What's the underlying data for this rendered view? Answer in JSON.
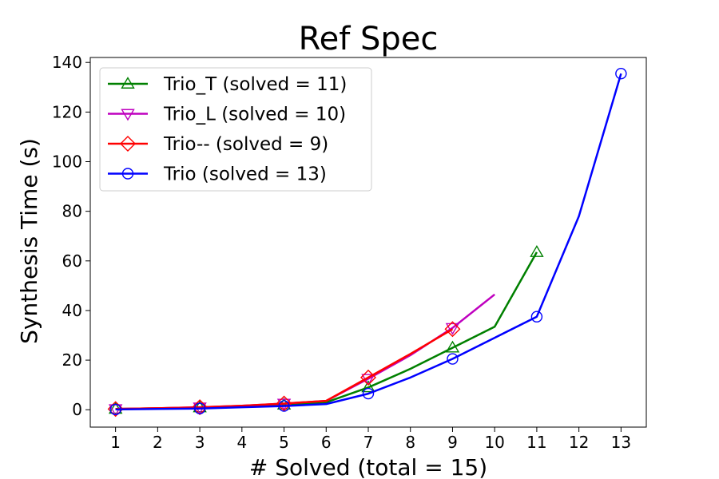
{
  "chart_data": {
    "type": "line",
    "title": "Ref Spec",
    "xlabel": "# Solved (total = 15)",
    "ylabel": "Synthesis Time (s)",
    "xlim": [
      0.4,
      13.6
    ],
    "ylim": [
      -7,
      142
    ],
    "xticks": [
      1,
      2,
      3,
      4,
      5,
      6,
      7,
      8,
      9,
      10,
      11,
      12,
      13
    ],
    "yticks": [
      0,
      20,
      40,
      60,
      80,
      100,
      120,
      140
    ],
    "grid": false,
    "legend_position": "top-left",
    "series": [
      {
        "name": "Trio_T (solved = 11)",
        "color": "#008000",
        "marker": "triangle-up",
        "x": [
          1,
          2,
          3,
          4,
          5,
          6,
          7,
          8,
          9,
          10,
          11
        ],
        "y": [
          0.3,
          0.6,
          0.9,
          1.3,
          2.0,
          3.0,
          9.0,
          16.5,
          25.0,
          33.5,
          63.5
        ],
        "marker_x": [
          1,
          3,
          5,
          7,
          9,
          11
        ]
      },
      {
        "name": "Trio_L (solved = 10)",
        "color": "#bf00bf",
        "marker": "triangle-down",
        "x": [
          1,
          2,
          3,
          4,
          5,
          6,
          7,
          8,
          9,
          10
        ],
        "y": [
          0.3,
          0.6,
          1.0,
          1.6,
          2.5,
          3.6,
          12.5,
          22.0,
          33.0,
          46.5
        ],
        "marker_x": [
          1,
          3,
          5,
          7,
          9
        ]
      },
      {
        "name": "Trio-- (solved = 9)",
        "color": "#ff0000",
        "marker": "diamond",
        "x": [
          1,
          2,
          3,
          4,
          5,
          6,
          7,
          8,
          9
        ],
        "y": [
          0.3,
          0.6,
          1.0,
          1.6,
          2.5,
          3.6,
          13.0,
          22.5,
          32.5
        ],
        "marker_x": [
          1,
          3,
          5,
          7,
          9
        ]
      },
      {
        "name": "Trio (solved = 13)",
        "color": "#0000ff",
        "marker": "circle",
        "x": [
          1,
          2,
          3,
          4,
          5,
          6,
          7,
          8,
          9,
          10,
          11,
          12,
          13
        ],
        "y": [
          0.1,
          0.3,
          0.5,
          1.0,
          1.5,
          2.3,
          6.5,
          13.0,
          20.5,
          29.0,
          37.5,
          78.0,
          135.5
        ],
        "marker_x": [
          1,
          3,
          5,
          7,
          9,
          11,
          13
        ]
      }
    ]
  }
}
